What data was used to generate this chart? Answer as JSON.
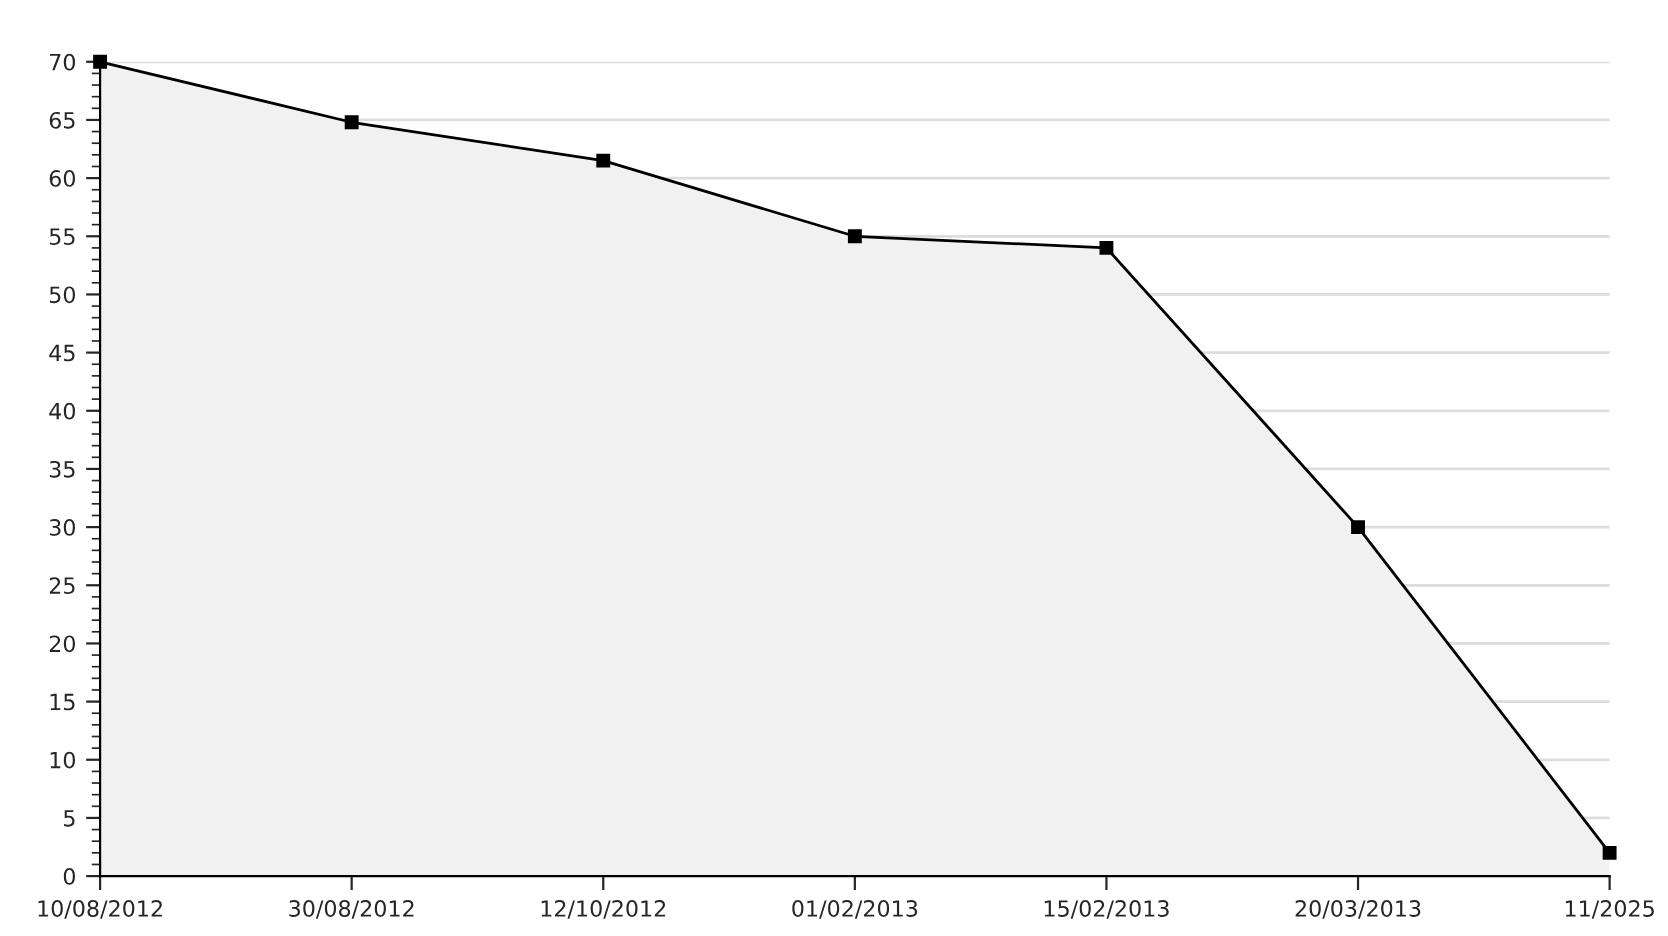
{
  "chart_data": {
    "type": "area",
    "categories": [
      "10/08/2012",
      "30/08/2012",
      "12/10/2012",
      "01/02/2013",
      "15/02/2013",
      "20/03/2013",
      "11/2025"
    ],
    "series": [
      {
        "color": "#000000",
        "values": [
          70,
          64.8,
          61.5,
          55,
          54,
          30,
          2
        ]
      }
    ],
    "ylim": [
      0,
      70
    ],
    "yticks": [
      0,
      5,
      10,
      15,
      20,
      25,
      30,
      35,
      40,
      45,
      50,
      55,
      60,
      65,
      70
    ],
    "grid": "y",
    "marker": "square",
    "line_style": "solid",
    "legend": false
  }
}
